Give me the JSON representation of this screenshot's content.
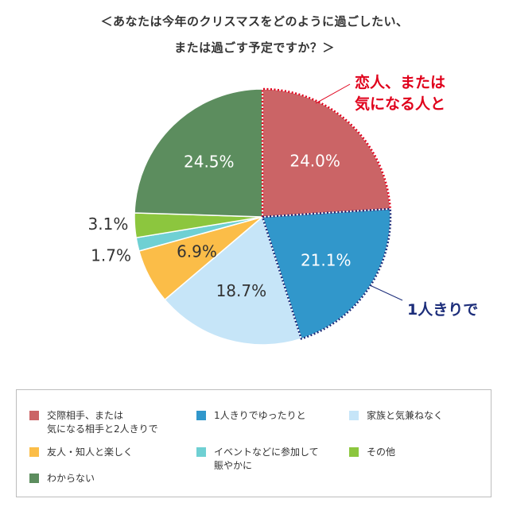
{
  "title": {
    "line1": "＜あなたは今年のクリスマスをどのように過ごしたい、",
    "line2": "または過ごす予定ですか？＞"
  },
  "callouts": {
    "couple": "恋人、または\n気になる人と",
    "alone": "1人きりで"
  },
  "colors": {
    "callout_couple": "#e0001b",
    "callout_alone": "#1c2d7a"
  },
  "chart_data": {
    "type": "pie",
    "start_angle_deg": 0,
    "direction": "clockwise",
    "slices": [
      {
        "name": "交際相手、または\n気になる相手と2人きりで",
        "value": 24.0,
        "label": "24.0%",
        "color": "#cb6466"
      },
      {
        "name": "1人きりでゆったりと",
        "value": 21.1,
        "label": "21.1%",
        "color": "#3197cb"
      },
      {
        "name": "家族と気兼ねなく",
        "value": 18.7,
        "label": "18.7%",
        "color": "#c6e5f8"
      },
      {
        "name": "友人・知人と楽しく",
        "value": 6.9,
        "label": "6.9%",
        "color": "#fbbd48"
      },
      {
        "name": "イベントなどに参加して\n賑やかに",
        "value": 1.7,
        "label": "1.7%",
        "color": "#6fd0d3"
      },
      {
        "name": "その他",
        "value": 3.1,
        "label": "3.1%",
        "color": "#8cc63e"
      },
      {
        "name": "わからない",
        "value": 24.5,
        "label": "24.5%",
        "color": "#5c8d5e"
      }
    ]
  }
}
